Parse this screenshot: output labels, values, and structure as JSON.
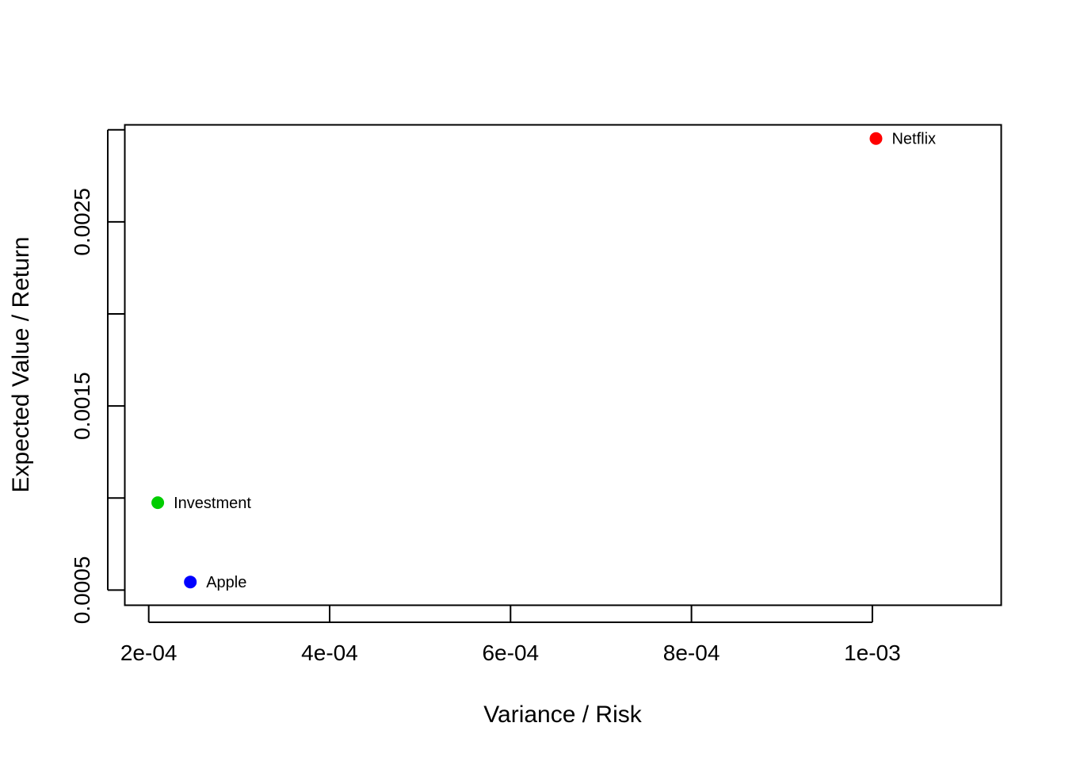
{
  "chart_data": {
    "type": "scatter",
    "title": "",
    "xlabel": "Variance / Risk",
    "ylabel": "Expected Value / Return",
    "xlim": [
      0.000174,
      0.001142
    ],
    "ylim": [
      0.00042,
      0.003025
    ],
    "x_ticks": [
      0.0002,
      0.0004,
      0.0006,
      0.0008,
      0.001
    ],
    "x_tick_labels": [
      "2e-04",
      "4e-04",
      "6e-04",
      "8e-04",
      "1e-03"
    ],
    "y_ticks": [
      0.0005,
      0.001,
      0.0015,
      0.002,
      0.0025,
      0.003
    ],
    "y_tick_labels": [
      "0.0005",
      "",
      "0.0015",
      "",
      "0.0025",
      ""
    ],
    "grid": false,
    "points": [
      {
        "label": "Netflix",
        "x": 0.001004,
        "y": 0.002953,
        "color": "#ff0000"
      },
      {
        "label": "Investment",
        "x": 0.00021,
        "y": 0.000975,
        "color": "#00cd00"
      },
      {
        "label": "Apple",
        "x": 0.000246,
        "y": 0.000544,
        "color": "#0000ff"
      }
    ]
  }
}
